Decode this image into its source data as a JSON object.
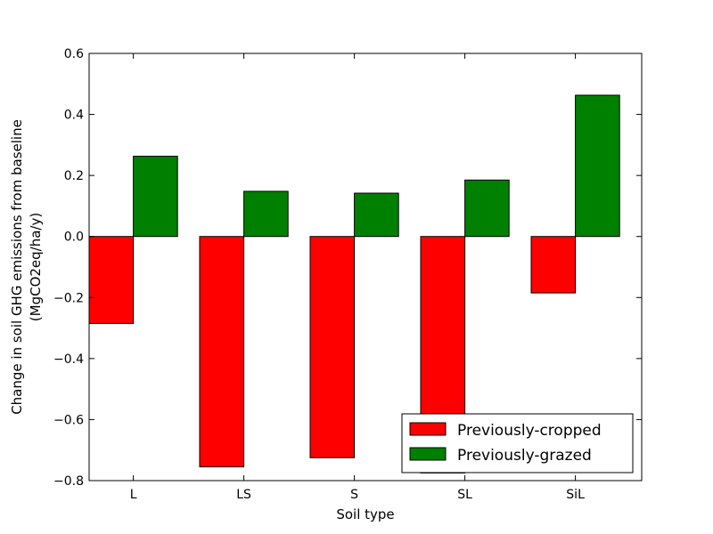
{
  "chart_data": {
    "type": "bar",
    "categories": [
      "L",
      "LS",
      "S",
      "SL",
      "SiL"
    ],
    "series": [
      {
        "name": "Previously-cropped",
        "color": "#ff0000",
        "values": [
          -0.285,
          -0.755,
          -0.725,
          -0.775,
          -0.185
        ]
      },
      {
        "name": "Previously-grazed",
        "color": "#008000",
        "values": [
          0.263,
          0.148,
          0.142,
          0.185,
          0.463
        ]
      }
    ],
    "xlabel": "Soil type",
    "ylabel": [
      "Change in soil GHG emissions from baseline",
      "(MgCO2eq/ha/y)"
    ],
    "ylim": [
      -0.8,
      0.6
    ],
    "yticks": [
      -0.8,
      -0.6,
      -0.4,
      -0.2,
      0.0,
      0.2,
      0.4,
      0.6
    ],
    "ytick_labels": [
      "−0.8",
      "−0.6",
      "−0.4",
      "−0.2",
      "0.0",
      "0.2",
      "0.4",
      "0.6"
    ],
    "grid": false,
    "legend_position": "lower-right"
  }
}
